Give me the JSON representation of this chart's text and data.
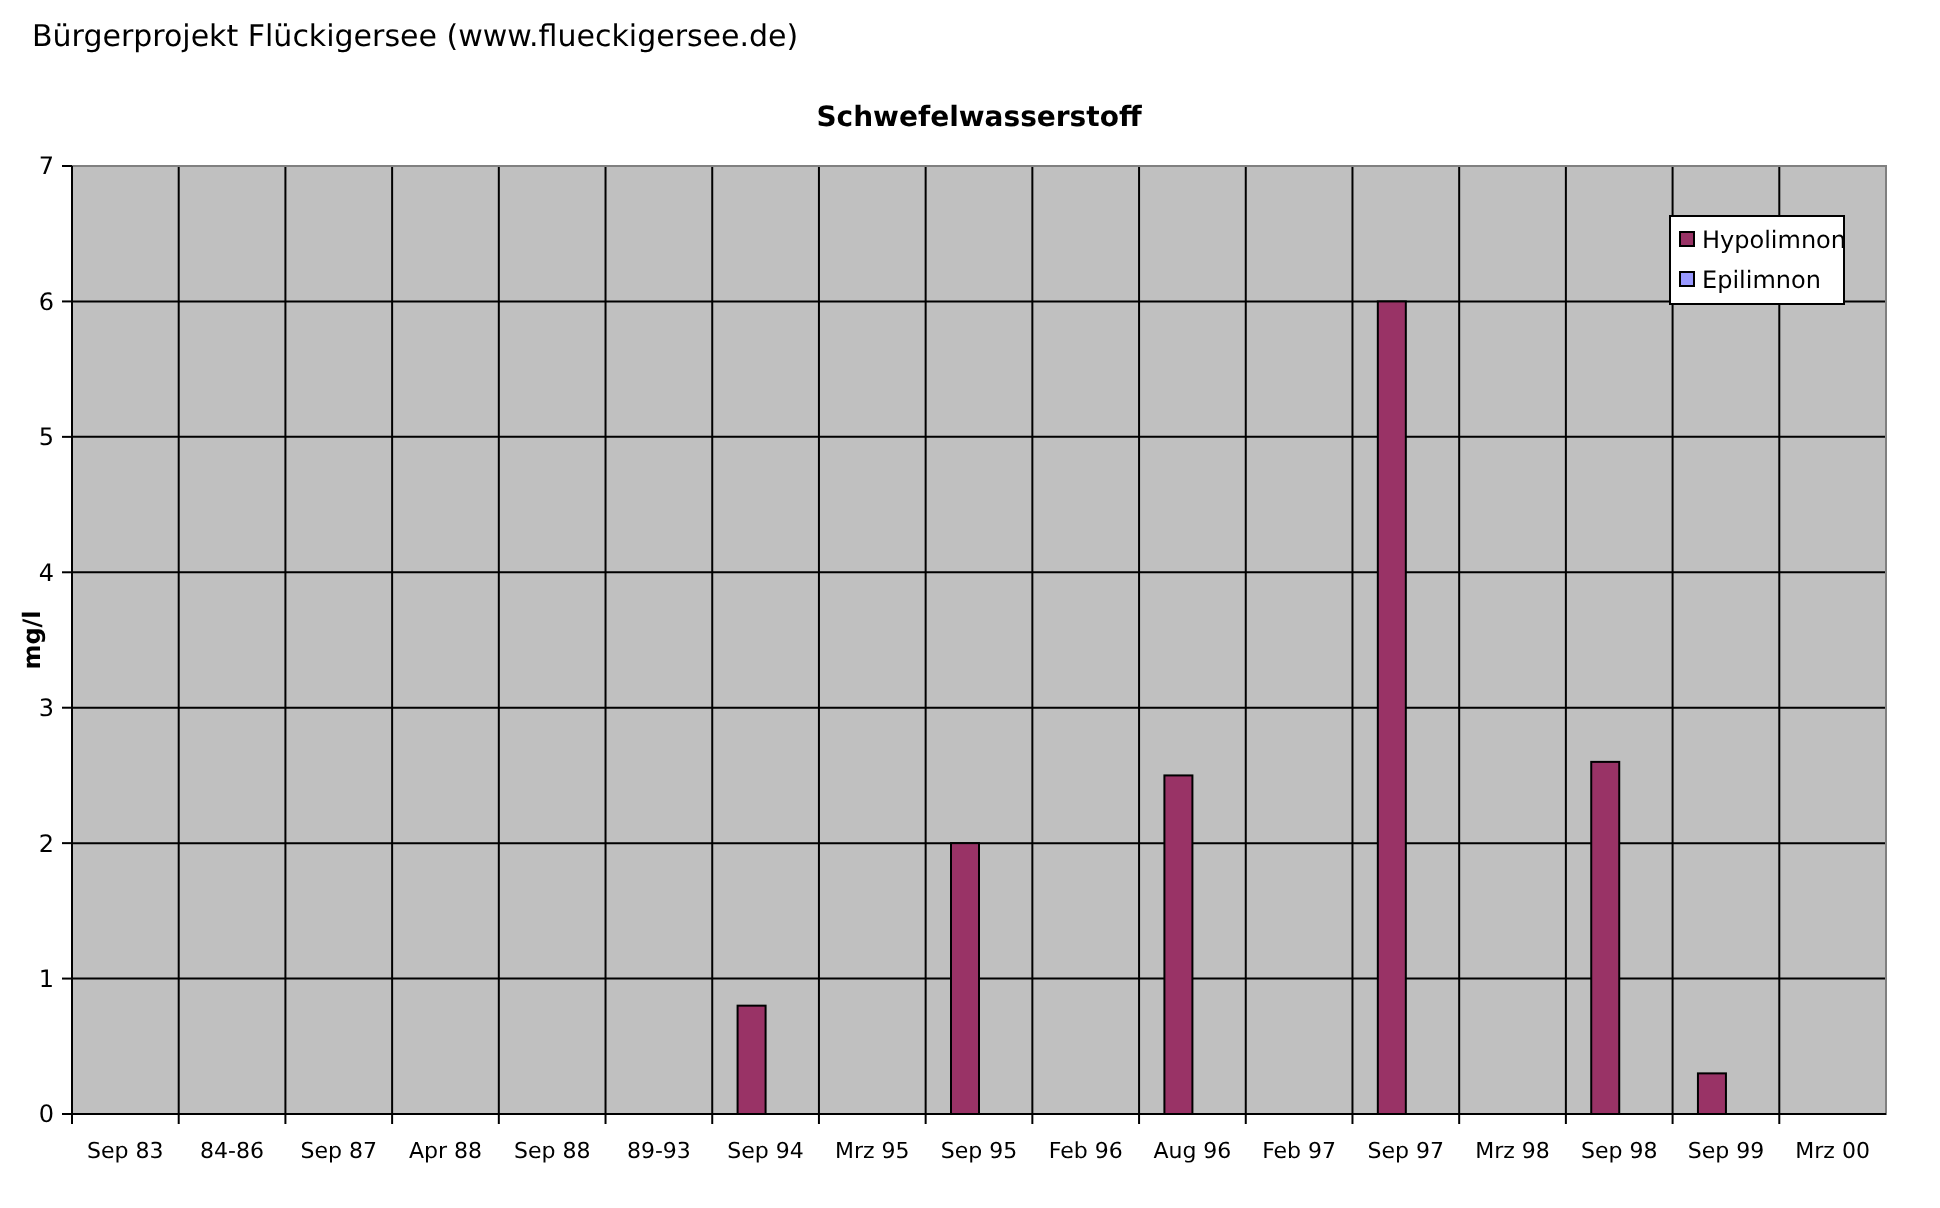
{
  "chart_data": {
    "type": "bar",
    "title": "Schwefelwasserstoff",
    "annotations": [
      "Bürgerprojekt Flückigersee (www.flueckigersee.de)"
    ],
    "ylabel": "mg/l",
    "categories": [
      "Sep 83",
      "84-86",
      "Sep 87",
      "Apr 88",
      "Sep 88",
      "89-93",
      "Sep 94",
      "Mrz 95",
      "Sep 95",
      "Feb 96",
      "Aug 96",
      "Feb 97",
      "Sep 97",
      "Mrz 98",
      "Sep 98",
      "Sep 99",
      "Mrz 00"
    ],
    "series": [
      {
        "name": "Hypolimnon",
        "color": "#993366",
        "values": [
          null,
          null,
          null,
          null,
          null,
          null,
          0.8,
          null,
          2,
          null,
          2.5,
          null,
          6,
          null,
          2.6,
          0.3,
          null
        ]
      },
      {
        "name": "Epilimnon",
        "color": "#9999ff",
        "values": [
          null,
          null,
          null,
          null,
          null,
          null,
          null,
          null,
          null,
          null,
          null,
          null,
          null,
          null,
          null,
          null,
          null
        ]
      }
    ],
    "ylim": [
      0,
      7
    ],
    "yticks": [
      0,
      1,
      2,
      3,
      4,
      5,
      6,
      7
    ],
    "grid": true,
    "legend": "top right"
  }
}
